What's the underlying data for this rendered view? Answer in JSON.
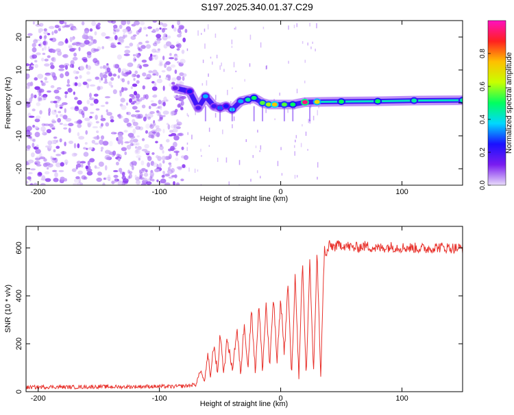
{
  "title": "S197.2025.340.01.37.C29",
  "chart_data": [
    {
      "type": "heatmap",
      "xlabel": "Height of straight line (km)",
      "ylabel": "Frequency (Hz)",
      "xlim": [
        -210,
        150
      ],
      "ylim": [
        -25,
        25
      ],
      "xticks": [
        -200,
        -100,
        0,
        100
      ],
      "xtick_labels": [
        "-200",
        "-100",
        "0",
        "100"
      ],
      "yticks": [
        -20,
        -10,
        0,
        10,
        20
      ],
      "ytick_labels": [
        "-20",
        "-10",
        "0",
        "10",
        "20"
      ],
      "colorbar": {
        "label": "Normalized spectral amplitude",
        "range": [
          0,
          1
        ],
        "ticks": [
          0,
          0.2,
          0.4,
          0.6,
          0.8
        ],
        "tick_labels": [
          "0.0",
          "0.2",
          "0.4",
          "0.6",
          "0.8"
        ],
        "colors": [
          "#e8dcfa",
          "#7a1cf0",
          "#1a10ff",
          "#00d8ff",
          "#00ff60",
          "#c8ff00",
          "#ffc000",
          "#ff2020",
          "#ff10c0"
        ]
      },
      "noise_region": {
        "x_range": [
          -210,
          -78
        ],
        "f_range": [
          -25,
          25
        ],
        "max_amplitude": 0.12
      },
      "ridge": [
        {
          "x": -87,
          "f": 4.5,
          "amp": 0.15
        },
        {
          "x": -75,
          "f": 3.5,
          "amp": 0.25
        },
        {
          "x": -68,
          "f": -1.5,
          "amp": 0.18
        },
        {
          "x": -62,
          "f": 2.0,
          "amp": 0.35
        },
        {
          "x": -55,
          "f": -1.0,
          "amp": 0.2
        },
        {
          "x": -50,
          "f": -1.5,
          "amp": 0.3
        },
        {
          "x": -45,
          "f": -1.0,
          "amp": 0.25
        },
        {
          "x": -40,
          "f": -2.0,
          "amp": 0.38
        },
        {
          "x": -33,
          "f": 0.5,
          "amp": 0.35
        },
        {
          "x": -27,
          "f": 1.0,
          "amp": 0.45
        },
        {
          "x": -22,
          "f": 1.5,
          "amp": 0.5
        },
        {
          "x": -15,
          "f": 0.0,
          "amp": 0.55
        },
        {
          "x": -10,
          "f": -0.5,
          "amp": 0.6
        },
        {
          "x": -5,
          "f": -0.5,
          "amp": 0.75
        },
        {
          "x": 3,
          "f": -0.5,
          "amp": 0.55
        },
        {
          "x": 10,
          "f": -0.5,
          "amp": 0.5
        },
        {
          "x": 20,
          "f": 0.2,
          "amp": 0.95
        },
        {
          "x": 30,
          "f": 0.3,
          "amp": 0.7
        },
        {
          "x": 50,
          "f": 0.4,
          "amp": 0.5
        },
        {
          "x": 80,
          "f": 0.5,
          "amp": 0.5
        },
        {
          "x": 110,
          "f": 0.7,
          "amp": 0.45
        },
        {
          "x": 150,
          "f": 0.8,
          "amp": 0.45
        }
      ]
    },
    {
      "type": "line",
      "xlabel": "Height of straight line (km)",
      "ylabel": "SNR (10 * v/v)",
      "xlim": [
        -210,
        150
      ],
      "ylim": [
        0,
        690
      ],
      "xticks": [
        -200,
        -100,
        0,
        100
      ],
      "xtick_labels": [
        "-200",
        "-100",
        "0",
        "100"
      ],
      "yticks": [
        0,
        200,
        400,
        600
      ],
      "ytick_labels": [
        "0",
        "200",
        "400",
        "600"
      ],
      "color": "#e8302a",
      "series": [
        {
          "name": "SNR",
          "x": [
            -210,
            -190,
            -170,
            -150,
            -130,
            -110,
            -90,
            -78,
            -70,
            -66,
            -63,
            -60,
            -58,
            -55,
            -52,
            -50,
            -47,
            -44,
            -40,
            -36,
            -33,
            -30,
            -27,
            -24,
            -21,
            -18,
            -15,
            -12,
            -9,
            -6,
            -3,
            0,
            3,
            6,
            9,
            12,
            15,
            18,
            21,
            24,
            27,
            30,
            33,
            36,
            37,
            40,
            45,
            50,
            60,
            70,
            80,
            90,
            100,
            110,
            120,
            130,
            140,
            150
          ],
          "y": [
            18,
            20,
            19,
            21,
            20,
            22,
            21,
            24,
            30,
            90,
            40,
            150,
            60,
            200,
            70,
            250,
            80,
            220,
            90,
            260,
            70,
            290,
            100,
            350,
            80,
            360,
            90,
            370,
            100,
            400,
            120,
            390,
            160,
            450,
            60,
            500,
            50,
            540,
            60,
            550,
            70,
            580,
            65,
            600,
            560,
            610,
            605,
            615,
            600,
            608,
            598,
            605,
            602,
            600,
            597,
            603,
            600,
            598
          ]
        }
      ]
    }
  ]
}
